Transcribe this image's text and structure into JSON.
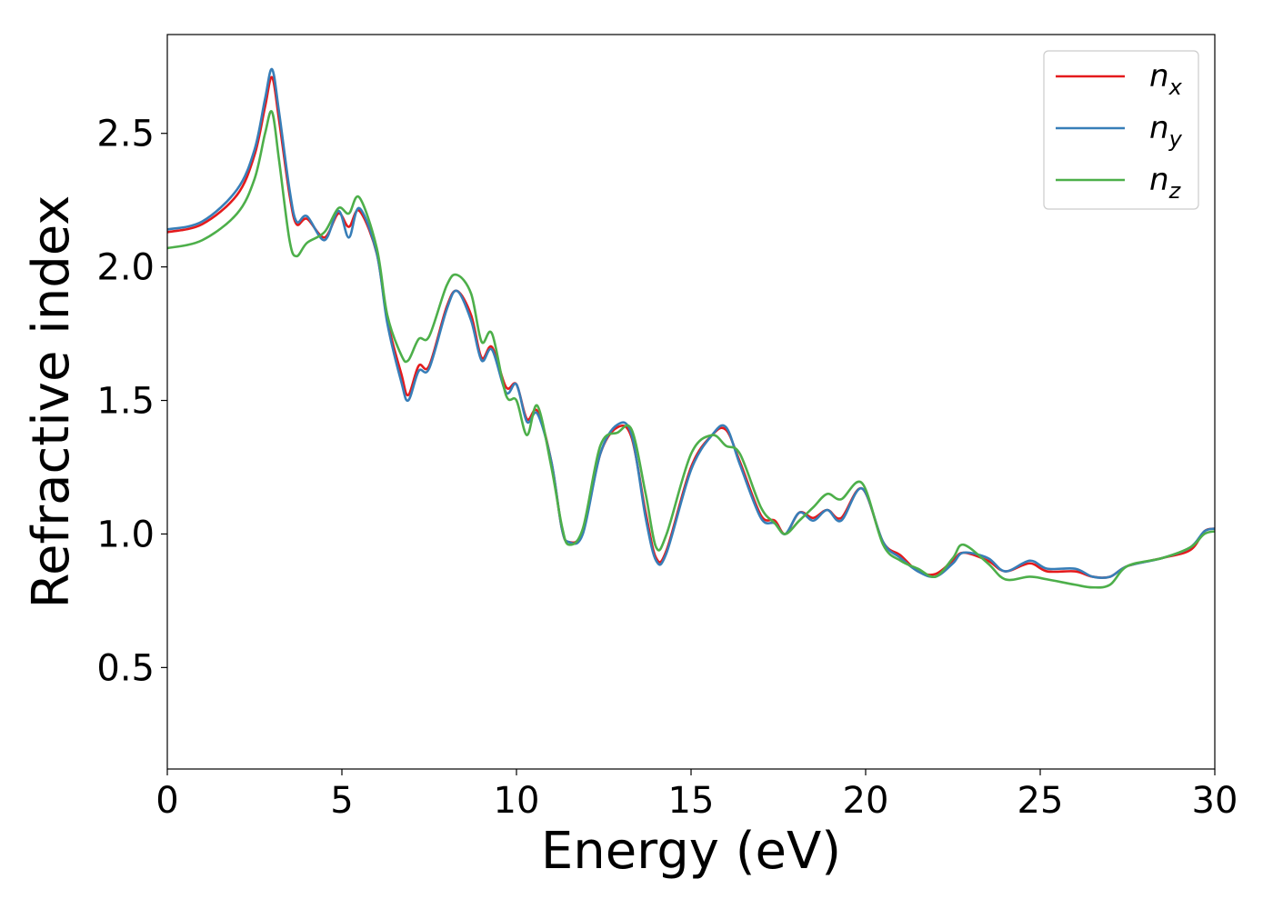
{
  "chart_data": {
    "type": "line",
    "xlabel": "Energy (eV)",
    "ylabel": "Refractive index",
    "xlim": [
      0,
      30
    ],
    "ylim": [
      0.12,
      2.87
    ],
    "xticks": [
      "0",
      "5",
      "10",
      "15",
      "20",
      "25",
      "30"
    ],
    "yticks": [
      "0.5",
      "1.0",
      "1.5",
      "2.0",
      "2.5"
    ],
    "grid": false,
    "legend": "top-right",
    "series": [
      {
        "name": "n",
        "subscript": "x",
        "color": "#e41a1c",
        "points": [
          [
            0,
            2.13
          ],
          [
            1,
            2.16
          ],
          [
            2,
            2.27
          ],
          [
            2.5,
            2.42
          ],
          [
            2.8,
            2.6
          ],
          [
            3.0,
            2.71
          ],
          [
            3.2,
            2.55
          ],
          [
            3.5,
            2.27
          ],
          [
            3.7,
            2.16
          ],
          [
            4.0,
            2.18
          ],
          [
            4.5,
            2.11
          ],
          [
            4.9,
            2.2
          ],
          [
            5.2,
            2.15
          ],
          [
            5.5,
            2.21
          ],
          [
            6.0,
            2.05
          ],
          [
            6.3,
            1.8
          ],
          [
            6.7,
            1.6
          ],
          [
            6.9,
            1.52
          ],
          [
            7.2,
            1.63
          ],
          [
            7.5,
            1.63
          ],
          [
            8.0,
            1.85
          ],
          [
            8.3,
            1.91
          ],
          [
            8.7,
            1.82
          ],
          [
            9.0,
            1.66
          ],
          [
            9.3,
            1.7
          ],
          [
            9.7,
            1.55
          ],
          [
            10.0,
            1.56
          ],
          [
            10.3,
            1.43
          ],
          [
            10.6,
            1.46
          ],
          [
            11.0,
            1.27
          ],
          [
            11.3,
            1.02
          ],
          [
            11.5,
            0.97
          ],
          [
            11.9,
            1.01
          ],
          [
            12.4,
            1.3
          ],
          [
            12.9,
            1.4
          ],
          [
            13.3,
            1.36
          ],
          [
            13.7,
            1.08
          ],
          [
            14.0,
            0.91
          ],
          [
            14.3,
            0.94
          ],
          [
            15.0,
            1.25
          ],
          [
            15.6,
            1.37
          ],
          [
            16.0,
            1.39
          ],
          [
            16.4,
            1.27
          ],
          [
            17.0,
            1.07
          ],
          [
            17.4,
            1.05
          ],
          [
            17.7,
            1.0
          ],
          [
            18.1,
            1.08
          ],
          [
            18.5,
            1.06
          ],
          [
            18.9,
            1.09
          ],
          [
            19.3,
            1.06
          ],
          [
            19.9,
            1.17
          ],
          [
            20.5,
            0.97
          ],
          [
            21.0,
            0.92
          ],
          [
            21.5,
            0.86
          ],
          [
            22.0,
            0.85
          ],
          [
            22.5,
            0.9
          ],
          [
            22.8,
            0.93
          ],
          [
            23.5,
            0.9
          ],
          [
            24.0,
            0.86
          ],
          [
            24.7,
            0.89
          ],
          [
            25.2,
            0.86
          ],
          [
            26.0,
            0.86
          ],
          [
            26.5,
            0.84
          ],
          [
            27.0,
            0.84
          ],
          [
            27.5,
            0.88
          ],
          [
            28.5,
            0.91
          ],
          [
            29.3,
            0.94
          ],
          [
            29.7,
            1.01
          ],
          [
            30.0,
            1.02
          ]
        ]
      },
      {
        "name": "n",
        "subscript": "y",
        "color": "#377eb8",
        "points": [
          [
            0,
            2.14
          ],
          [
            1,
            2.17
          ],
          [
            2,
            2.29
          ],
          [
            2.5,
            2.44
          ],
          [
            2.8,
            2.63
          ],
          [
            3.0,
            2.74
          ],
          [
            3.2,
            2.58
          ],
          [
            3.5,
            2.29
          ],
          [
            3.7,
            2.17
          ],
          [
            4.0,
            2.19
          ],
          [
            4.5,
            2.1
          ],
          [
            4.9,
            2.21
          ],
          [
            5.2,
            2.11
          ],
          [
            5.5,
            2.22
          ],
          [
            6.0,
            2.05
          ],
          [
            6.3,
            1.79
          ],
          [
            6.7,
            1.57
          ],
          [
            6.9,
            1.5
          ],
          [
            7.2,
            1.61
          ],
          [
            7.5,
            1.62
          ],
          [
            8.0,
            1.84
          ],
          [
            8.3,
            1.91
          ],
          [
            8.7,
            1.8
          ],
          [
            9.0,
            1.65
          ],
          [
            9.3,
            1.69
          ],
          [
            9.7,
            1.53
          ],
          [
            10.0,
            1.56
          ],
          [
            10.3,
            1.42
          ],
          [
            10.6,
            1.45
          ],
          [
            11.0,
            1.27
          ],
          [
            11.3,
            1.02
          ],
          [
            11.5,
            0.97
          ],
          [
            11.9,
            1.0
          ],
          [
            12.4,
            1.3
          ],
          [
            12.9,
            1.41
          ],
          [
            13.3,
            1.37
          ],
          [
            13.7,
            1.06
          ],
          [
            14.0,
            0.9
          ],
          [
            14.3,
            0.93
          ],
          [
            15.0,
            1.24
          ],
          [
            15.6,
            1.37
          ],
          [
            16.0,
            1.4
          ],
          [
            16.4,
            1.26
          ],
          [
            17.0,
            1.06
          ],
          [
            17.4,
            1.04
          ],
          [
            17.7,
            1.0
          ],
          [
            18.1,
            1.08
          ],
          [
            18.5,
            1.05
          ],
          [
            18.9,
            1.09
          ],
          [
            19.3,
            1.05
          ],
          [
            19.9,
            1.17
          ],
          [
            20.5,
            0.97
          ],
          [
            21.0,
            0.91
          ],
          [
            21.5,
            0.86
          ],
          [
            22.0,
            0.84
          ],
          [
            22.5,
            0.89
          ],
          [
            22.8,
            0.93
          ],
          [
            23.5,
            0.91
          ],
          [
            24.0,
            0.86
          ],
          [
            24.7,
            0.9
          ],
          [
            25.2,
            0.87
          ],
          [
            26.0,
            0.87
          ],
          [
            26.5,
            0.84
          ],
          [
            27.0,
            0.84
          ],
          [
            27.5,
            0.88
          ],
          [
            28.5,
            0.91
          ],
          [
            29.3,
            0.95
          ],
          [
            29.7,
            1.01
          ],
          [
            30.0,
            1.02
          ]
        ]
      },
      {
        "name": "n",
        "subscript": "z",
        "color": "#4daf4a",
        "points": [
          [
            0,
            2.07
          ],
          [
            1,
            2.1
          ],
          [
            2,
            2.2
          ],
          [
            2.5,
            2.33
          ],
          [
            2.8,
            2.5
          ],
          [
            3.0,
            2.58
          ],
          [
            3.2,
            2.4
          ],
          [
            3.5,
            2.1
          ],
          [
            3.7,
            2.04
          ],
          [
            4.0,
            2.09
          ],
          [
            4.5,
            2.13
          ],
          [
            4.9,
            2.22
          ],
          [
            5.2,
            2.2
          ],
          [
            5.5,
            2.26
          ],
          [
            6.0,
            2.07
          ],
          [
            6.3,
            1.82
          ],
          [
            6.7,
            1.67
          ],
          [
            6.9,
            1.65
          ],
          [
            7.2,
            1.73
          ],
          [
            7.5,
            1.74
          ],
          [
            8.0,
            1.93
          ],
          [
            8.3,
            1.97
          ],
          [
            8.7,
            1.9
          ],
          [
            9.0,
            1.72
          ],
          [
            9.3,
            1.75
          ],
          [
            9.7,
            1.52
          ],
          [
            10.0,
            1.5
          ],
          [
            10.3,
            1.37
          ],
          [
            10.6,
            1.48
          ],
          [
            11.0,
            1.25
          ],
          [
            11.3,
            1.03
          ],
          [
            11.5,
            0.96
          ],
          [
            11.9,
            1.02
          ],
          [
            12.4,
            1.33
          ],
          [
            12.9,
            1.38
          ],
          [
            13.3,
            1.39
          ],
          [
            13.7,
            1.15
          ],
          [
            14.0,
            0.95
          ],
          [
            14.3,
            1.0
          ],
          [
            15.0,
            1.3
          ],
          [
            15.6,
            1.37
          ],
          [
            16.0,
            1.33
          ],
          [
            16.4,
            1.3
          ],
          [
            17.0,
            1.1
          ],
          [
            17.4,
            1.04
          ],
          [
            17.7,
            1.0
          ],
          [
            18.1,
            1.05
          ],
          [
            18.5,
            1.1
          ],
          [
            18.9,
            1.15
          ],
          [
            19.3,
            1.13
          ],
          [
            19.9,
            1.19
          ],
          [
            20.5,
            0.96
          ],
          [
            21.0,
            0.9
          ],
          [
            21.5,
            0.87
          ],
          [
            22.0,
            0.84
          ],
          [
            22.5,
            0.91
          ],
          [
            22.8,
            0.96
          ],
          [
            23.5,
            0.89
          ],
          [
            24.0,
            0.83
          ],
          [
            24.7,
            0.84
          ],
          [
            25.2,
            0.83
          ],
          [
            26.0,
            0.81
          ],
          [
            26.5,
            0.8
          ],
          [
            27.0,
            0.81
          ],
          [
            27.5,
            0.88
          ],
          [
            28.5,
            0.91
          ],
          [
            29.3,
            0.95
          ],
          [
            29.7,
            1.0
          ],
          [
            30.0,
            1.01
          ]
        ]
      }
    ]
  }
}
